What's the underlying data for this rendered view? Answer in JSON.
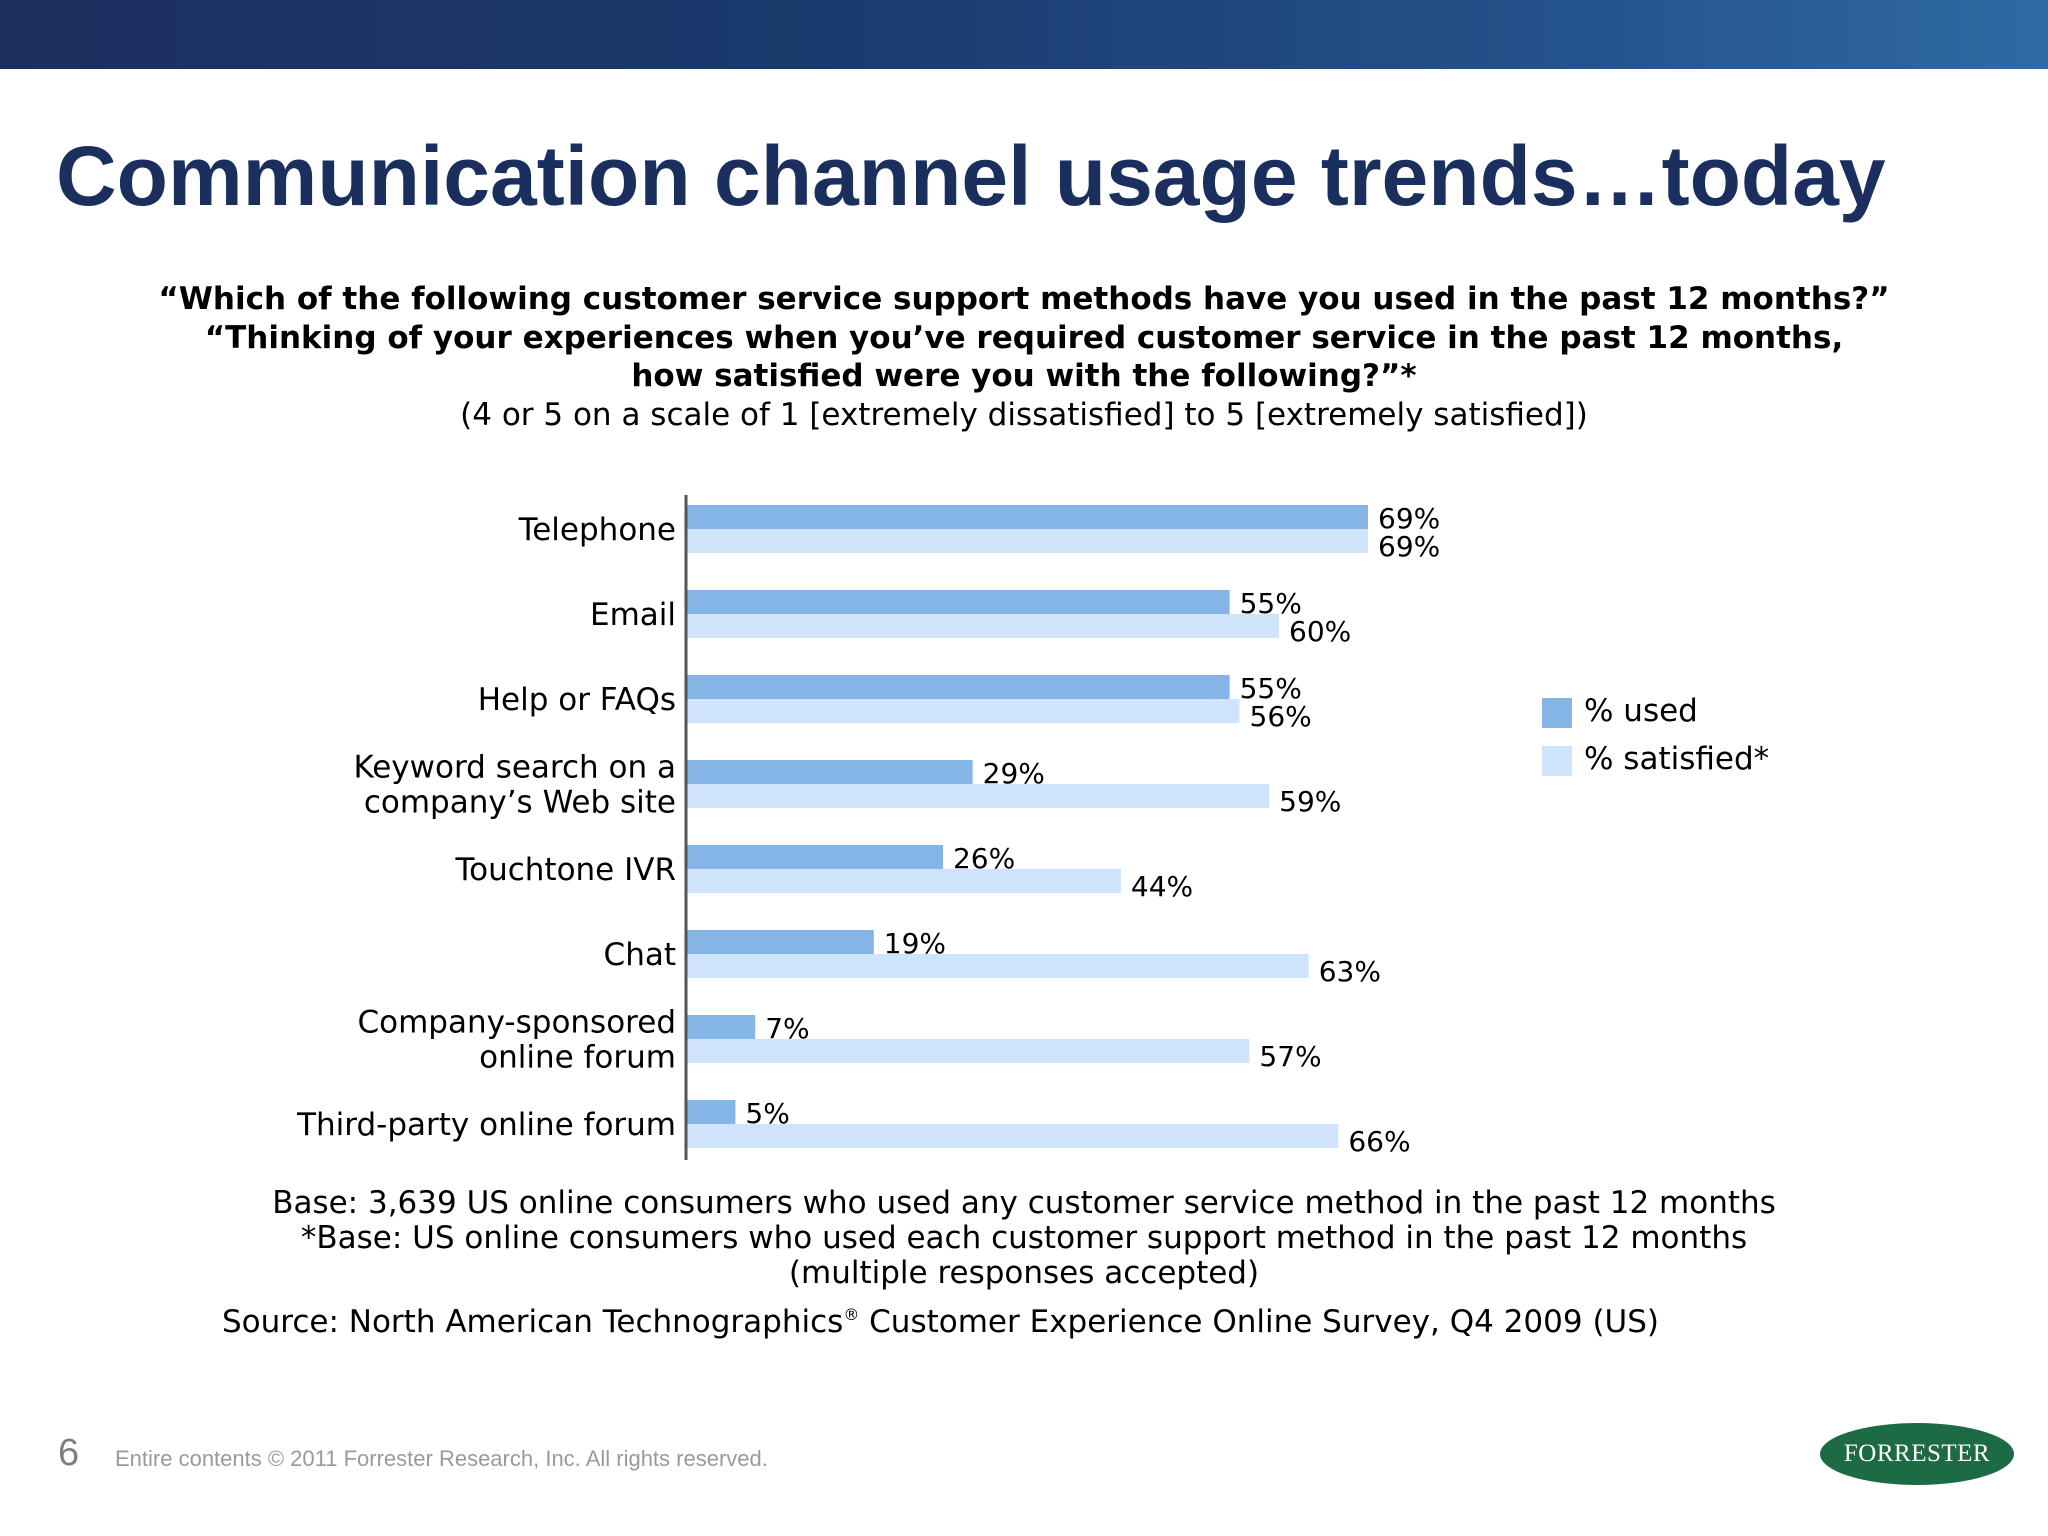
{
  "slide": {
    "title": "Communication channel usage trends…today",
    "page_number": "6",
    "footer": "Entire contents © 2011 Forrester Research, Inc. All rights reserved.",
    "logo_text": "FORRESTER"
  },
  "question": {
    "line1": "“Which of the following customer service support methods have you used in the past 12 months?”",
    "line2": "“Thinking of your experiences when you’ve required customer service in the past 12 months,",
    "line3": "how satisfied were you with the following?”*",
    "line4": "(4 or 5 on a scale of 1 [extremely dissatisfied] to 5 [extremely satisfied])"
  },
  "notes": {
    "base1": "Base: 3,639 US online consumers who used any customer service method in the past 12 months",
    "base2": "*Base: US online consumers who used each customer support method in the past 12 months",
    "base3": "(multiple responses accepted)",
    "source_before": "Source: North American Technographics",
    "source_reg": "®",
    "source_after": " Customer Experience Online Survey, Q4 2009 (US)"
  },
  "legend": {
    "used": "% used",
    "satisfied": "% satisfied*"
  },
  "colors": {
    "used": "#85b4e6",
    "satisfied": "#cfe4fb"
  },
  "chart_data": {
    "type": "bar",
    "orientation": "horizontal",
    "categories": [
      [
        "Telephone"
      ],
      [
        "Email"
      ],
      [
        "Help or FAQs"
      ],
      [
        "Keyword search on a",
        "company’s Web site"
      ],
      [
        "Touchtone IVR"
      ],
      [
        "Chat"
      ],
      [
        "Company-sponsored",
        "online forum"
      ],
      [
        "Third-party online forum"
      ]
    ],
    "series": [
      {
        "name": "% used",
        "values": [
          69,
          55,
          55,
          29,
          26,
          19,
          7,
          5
        ]
      },
      {
        "name": "% satisfied*",
        "values": [
          69,
          60,
          56,
          59,
          44,
          63,
          57,
          66
        ]
      }
    ],
    "value_suffix": "%",
    "xlim": [
      0,
      69
    ],
    "legend_position": "right",
    "grid": false
  }
}
